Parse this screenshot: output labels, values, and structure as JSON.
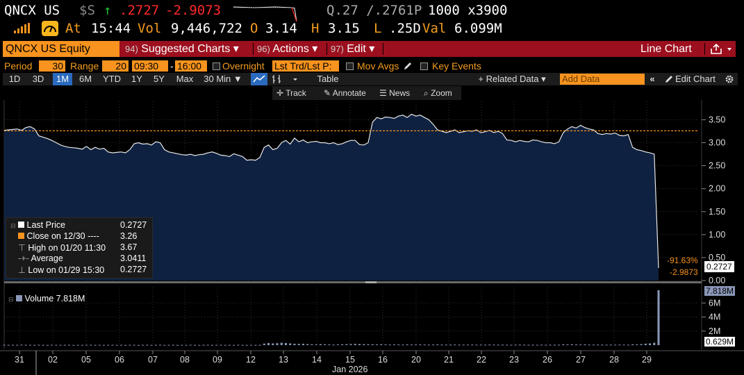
{
  "quote": {
    "ticker": "QNCX US",
    "currency": "$S",
    "arrow": "↑",
    "last": ".2727",
    "change": "-2.9073",
    "bidask": "Q.27 /.2761P",
    "size": "1000 x3900",
    "at_label": "At",
    "time": "15:44",
    "vol_label": "Vol",
    "vol": "9,446,722",
    "open_label": "O",
    "open": "3.14",
    "high_label": "H",
    "high": "3.15",
    "low_label": "L",
    "low": ".25D",
    "val_label": "Val",
    "val": "6.099M"
  },
  "menubar": {
    "security": "QNCX US Equity",
    "suggested_num": "94)",
    "suggested": "Suggested Charts ▾",
    "actions_num": "96)",
    "actions": "Actions ▾",
    "edit_num": "97)",
    "edit": "Edit ▾",
    "chart_type": "Line Chart",
    "share_icon": "share-icon",
    "colors": {
      "bar": "#9c0f1e",
      "amber": "#f7931e"
    }
  },
  "settings": {
    "period_label": "Period",
    "period_value": "30",
    "range_label": "Range",
    "range_value": "20",
    "start_time": "09:30",
    "dash": "-",
    "end_time": "16:00",
    "overnight": "Overnight",
    "last_trade": "Lst Trd/Lst P:",
    "mov_avgs": "Mov Avgs",
    "key_events": "Key Events"
  },
  "toolbar": {
    "ranges": [
      "1D",
      "3D",
      "1M",
      "6M",
      "YTD",
      "1Y",
      "5Y",
      "Max"
    ],
    "selected_range": "1M",
    "interval": "30 Min ▼",
    "table": "Table",
    "related": "+ Related Data ▾",
    "add_data_placeholder": "Add Data",
    "edit_chart": "Edit Chart",
    "track": "Track",
    "annotate": "Annotate",
    "news": "News",
    "zoom": "Zoom"
  },
  "legend": {
    "last_price_label": "Last Price",
    "last_price": "0.2727",
    "close_label": "Close on 12/30 ----",
    "close": "3.26",
    "high_label": "High on 01/20 11:30",
    "high": "3.67",
    "average_label": "Average",
    "average": "3.0411",
    "low_label": "Low on 01/29 15:30",
    "low": "0.2727",
    "volume_label": "Volume 7.818M"
  },
  "badges": {
    "pct": "-91.63%",
    "last": "0.2727",
    "chg": "-2.9873",
    "vol_top": "7.818M",
    "vol_last": "0.629M"
  },
  "chart_data": {
    "type": "area",
    "price_axis": {
      "ticks": [
        "3.50",
        "3.00",
        "2.50",
        "2.00",
        "1.50",
        "1.00",
        "0.50",
        "0.00"
      ],
      "ylim": [
        0,
        3.9
      ]
    },
    "volume_axis": {
      "ticks": [
        "6M",
        "4M",
        "2M"
      ],
      "ylim": [
        0,
        8.2
      ]
    },
    "x_ticks": [
      "31",
      "02",
      "05",
      "06",
      "07",
      "08",
      "09",
      "12",
      "13",
      "14",
      "15",
      "16",
      "20",
      "21",
      "22",
      "23",
      "26",
      "27",
      "28",
      "29"
    ],
    "x_sublabel": "Jan 2026",
    "reference_line": {
      "label": "Close on 12/30",
      "value": 3.26
    },
    "series": [
      {
        "values": [
          3.27,
          3.28,
          3.29,
          3.3,
          3.27,
          3.33,
          3.35,
          3.3,
          3.15,
          3.12,
          3.09,
          3.05,
          3.0,
          2.95,
          2.92,
          2.9,
          2.89,
          2.88,
          2.86,
          2.92,
          2.85,
          2.9,
          2.86,
          2.88,
          2.8,
          2.78,
          2.79,
          2.8,
          2.78,
          2.85,
          2.98,
          3.0,
          2.97,
          2.98,
          2.95,
          3.02,
          3.0,
          2.85,
          2.8,
          2.78,
          2.76,
          2.74,
          2.73,
          2.75,
          2.72,
          2.74,
          2.75,
          2.78,
          2.8,
          2.77,
          2.73,
          2.72,
          2.7,
          2.76,
          2.73,
          2.7,
          2.62,
          2.63,
          2.62,
          2.68,
          2.9,
          2.95,
          2.85,
          2.88,
          3.0,
          3.05,
          2.97,
          3.1,
          3.02,
          3.06,
          3.0,
          3.02,
          3.03,
          3.0,
          3.0,
          2.98,
          3.0,
          2.96,
          2.98,
          3.02,
          3.05,
          3.05,
          2.96,
          2.95,
          3.0,
          3.45,
          3.55,
          3.52,
          3.56,
          3.55,
          3.53,
          3.58,
          3.6,
          3.55,
          3.62,
          3.58,
          3.6,
          3.55,
          3.5,
          3.4,
          3.28,
          3.25,
          3.22,
          3.25,
          3.28,
          3.22,
          3.24,
          3.26,
          3.25,
          3.28,
          3.22,
          3.24,
          3.27,
          3.22,
          3.25,
          3.2,
          3.06,
          3.05,
          3.02,
          3.05,
          3.03,
          3.02,
          3.06,
          3.05,
          3.02,
          3.0,
          3.0,
          2.98,
          3.02,
          3.22,
          3.3,
          3.35,
          3.32,
          3.38,
          3.33,
          3.3,
          3.28,
          3.2,
          3.18,
          3.2,
          3.19,
          3.21,
          3.16,
          3.15,
          3.18,
          2.9,
          2.85,
          2.83,
          2.8,
          2.78,
          2.75,
          0.2727
        ]
      },
      {
        "name": "Volume",
        "values": [
          0.05,
          0.04,
          0.05,
          0.04,
          0.06,
          0.05,
          0.04,
          0.03,
          0.05,
          0.04,
          0.03,
          0.05,
          0.04,
          0.03,
          0.04,
          0.05,
          0.03,
          0.04,
          0.03,
          0.04,
          0.05,
          0.03,
          0.04,
          0.03,
          0.04,
          0.05,
          0.03,
          0.04,
          0.03,
          0.05,
          0.04,
          0.03,
          0.04,
          0.05,
          0.03,
          0.04,
          0.05,
          0.03,
          0.04,
          0.05,
          0.03,
          0.04,
          0.03,
          0.05,
          0.04,
          0.03,
          0.04,
          0.05,
          0.03,
          0.04,
          0.05,
          0.03,
          0.04,
          0.03,
          0.05,
          0.04,
          0.03,
          0.04,
          0.03,
          0.04,
          0.22,
          0.3,
          0.25,
          0.28,
          0.35,
          0.3,
          0.25,
          0.2,
          0.18,
          0.2,
          0.15,
          0.12,
          0.1,
          0.14,
          0.12,
          0.1,
          0.08,
          0.1,
          0.12,
          0.14,
          0.15,
          0.18,
          0.16,
          0.14,
          0.12,
          0.12,
          0.1,
          0.12,
          0.1,
          0.08,
          0.1,
          0.09,
          0.08,
          0.1,
          0.08,
          0.09,
          0.1,
          0.08,
          0.07,
          0.08,
          0.1,
          0.08,
          0.07,
          0.06,
          0.08,
          0.07,
          0.06,
          0.07,
          0.08,
          0.06,
          0.07,
          0.06,
          0.08,
          0.07,
          0.06,
          0.07,
          0.06,
          0.05,
          0.06,
          0.07,
          0.06,
          0.05,
          0.06,
          0.05,
          0.06,
          0.05,
          0.06,
          0.05,
          0.06,
          0.12,
          0.1,
          0.12,
          0.1,
          0.08,
          0.1,
          0.08,
          0.07,
          0.08,
          0.07,
          0.06,
          0.07,
          0.06,
          0.08,
          0.07,
          0.06,
          0.12,
          0.1,
          0.15,
          0.2,
          0.25,
          0.35,
          7.818
        ]
      }
    ]
  }
}
